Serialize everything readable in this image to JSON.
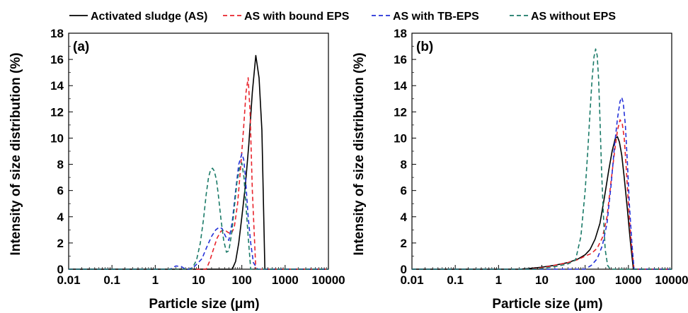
{
  "legend": [
    {
      "label": "Activated sludge (AS)",
      "color": "#000000",
      "dash": "solid"
    },
    {
      "label": "AS with bound EPS",
      "color": "#e8232b",
      "dash": "dashed"
    },
    {
      "label": "AS with TB-EPS",
      "color": "#2431d8",
      "dash": "dashed"
    },
    {
      "label": "AS without EPS",
      "color": "#1a7a68",
      "dash": "dashed"
    }
  ],
  "chart_data": [
    {
      "type": "line",
      "panel_label": "(a)",
      "xlabel": "Particle size (μm)",
      "ylabel": "Intensity of size distribution (%)",
      "xscale": "log",
      "xlim": [
        0.01,
        10000
      ],
      "ylim": [
        0,
        18
      ],
      "xticks": [
        "0.01",
        "0.1",
        "1",
        "10",
        "100",
        "1000",
        "10000"
      ],
      "yticks": [
        "0",
        "2",
        "4",
        "6",
        "8",
        "10",
        "12",
        "14",
        "16",
        "18"
      ],
      "series": [
        {
          "name": "Activated sludge (AS)",
          "x": [
            0.01,
            60,
            72,
            85,
            100,
            120,
            145,
            175,
            210,
            250,
            290,
            340,
            10000
          ],
          "y": [
            0,
            0,
            0.6,
            2.0,
            4.0,
            6.3,
            9.5,
            13.5,
            16.3,
            14.6,
            10.6,
            0,
            0
          ]
        },
        {
          "name": "AS with bound EPS",
          "x": [
            0.01,
            15,
            18,
            22,
            27,
            33,
            40,
            48,
            57,
            67,
            80,
            95,
            110,
            125,
            140,
            155,
            175,
            210,
            10000
          ],
          "y": [
            0,
            0,
            0.6,
            1.5,
            2.4,
            2.9,
            3.0,
            2.8,
            2.7,
            3.2,
            5.0,
            8.0,
            10.8,
            13.5,
            14.6,
            12.0,
            6.0,
            0,
            0
          ]
        },
        {
          "name": "AS with TB-EPS",
          "x": [
            0.01,
            2.2,
            3,
            4,
            5,
            6,
            8,
            12,
            16,
            20,
            25,
            30,
            35,
            42,
            50,
            60,
            72,
            85,
            100,
            110,
            120,
            140,
            160,
            185,
            230,
            10000
          ],
          "y": [
            0,
            0,
            0.25,
            0.2,
            0,
            0,
            0.2,
            0.8,
            1.8,
            2.5,
            3.0,
            3.2,
            3.1,
            2.5,
            2.2,
            3.6,
            6.0,
            8.0,
            8.8,
            8.4,
            7.2,
            4.0,
            2.0,
            0.5,
            0,
            0
          ]
        },
        {
          "name": "AS without EPS",
          "x": [
            0.01,
            7,
            9,
            11,
            13,
            15,
            17,
            19,
            21,
            23,
            26,
            29,
            33,
            38,
            44,
            50,
            58,
            67,
            77,
            88,
            100,
            112,
            125,
            140,
            160,
            10000
          ],
          "y": [
            0,
            0,
            0.7,
            2.0,
            3.8,
            5.7,
            7.0,
            7.6,
            7.7,
            7.5,
            6.8,
            5.5,
            3.8,
            2.2,
            1.3,
            1.4,
            2.7,
            4.7,
            6.6,
            7.7,
            8.1,
            7.0,
            4.8,
            2.5,
            0,
            0
          ]
        }
      ]
    },
    {
      "type": "line",
      "panel_label": "(b)",
      "xlabel": "Particle size (μm)",
      "ylabel": "Intensity of size distribution (%)",
      "xscale": "log",
      "xlim": [
        0.01,
        10000
      ],
      "ylim": [
        0,
        18
      ],
      "xticks": [
        "0.01",
        "0.1",
        "1",
        "10",
        "100",
        "1000",
        "10000"
      ],
      "yticks": [
        "0",
        "2",
        "4",
        "6",
        "8",
        "10",
        "12",
        "14",
        "16",
        "18"
      ],
      "series": [
        {
          "name": "Activated sludge (AS)",
          "x": [
            0.01,
            3,
            5,
            10,
            20,
            40,
            70,
            100,
            130,
            170,
            220,
            280,
            350,
            420,
            500,
            560,
            620,
            700,
            800,
            950,
            1100,
            1300,
            10000
          ],
          "y": [
            0,
            0,
            0.05,
            0.15,
            0.3,
            0.5,
            0.8,
            1.1,
            1.5,
            2.3,
            3.5,
            5.5,
            7.5,
            9.0,
            10.0,
            10.1,
            9.7,
            8.7,
            7.0,
            4.5,
            2.2,
            0,
            0
          ]
        },
        {
          "name": "AS with bound EPS",
          "x": [
            0.01,
            5,
            10,
            20,
            40,
            70,
            100,
            140,
            190,
            250,
            320,
            400,
            480,
            560,
            640,
            720,
            800,
            900,
            1000,
            1150,
            1350,
            10000
          ],
          "y": [
            0,
            0,
            0.1,
            0.3,
            0.5,
            0.75,
            1.0,
            1.2,
            1.6,
            2.4,
            4.0,
            6.8,
            9.0,
            10.6,
            11.4,
            11.1,
            10.0,
            7.5,
            5.0,
            2.2,
            0,
            0
          ]
        },
        {
          "name": "AS with TB-EPS",
          "x": [
            0.01,
            100,
            140,
            190,
            250,
            320,
            400,
            480,
            560,
            640,
            700,
            760,
            850,
            950,
            1050,
            1200,
            1350,
            10000
          ],
          "y": [
            0,
            0,
            0.3,
            0.8,
            1.8,
            3.5,
            6.5,
            9.5,
            11.5,
            12.8,
            13.1,
            12.7,
            11.0,
            8.0,
            5.0,
            2.0,
            0,
            0
          ]
        },
        {
          "name": "AS without EPS",
          "x": [
            0.01,
            8,
            20,
            40,
            60,
            80,
            100,
            115,
            130,
            145,
            160,
            175,
            190,
            205,
            220,
            240,
            265,
            290,
            330,
            380,
            10000
          ],
          "y": [
            0,
            0,
            0.2,
            0.4,
            0.7,
            2.5,
            6.0,
            9.0,
            12.0,
            14.5,
            16.2,
            16.8,
            16.3,
            14.5,
            11.5,
            7.5,
            4.0,
            1.5,
            0.3,
            0,
            0
          ]
        }
      ]
    }
  ]
}
